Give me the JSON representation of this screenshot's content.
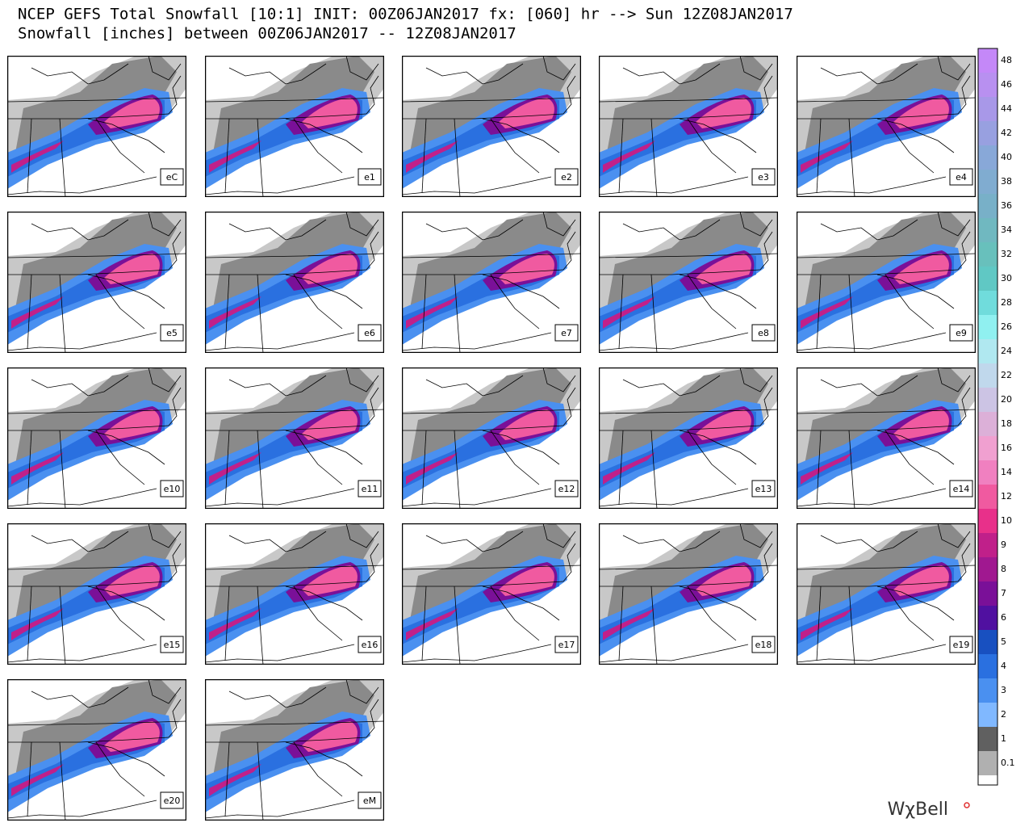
{
  "header": {
    "line1": "NCEP GEFS Total Snowfall [10:1] INIT: 00Z06JAN2017 fx: [060] hr --> Sun 12Z08JAN2017",
    "line2": "Snowfall [inches] between 00Z06JAN2017 -- 12Z08JAN2017"
  },
  "panels": [
    {
      "label": "eC"
    },
    {
      "label": "e1"
    },
    {
      "label": "e2"
    },
    {
      "label": "e3"
    },
    {
      "label": "e4"
    },
    {
      "label": "e5"
    },
    {
      "label": "e6"
    },
    {
      "label": "e7"
    },
    {
      "label": "e8"
    },
    {
      "label": "e9"
    },
    {
      "label": "e10"
    },
    {
      "label": "e11"
    },
    {
      "label": "e12"
    },
    {
      "label": "e13"
    },
    {
      "label": "e14"
    },
    {
      "label": "e15"
    },
    {
      "label": "e16"
    },
    {
      "label": "e17"
    },
    {
      "label": "e18"
    },
    {
      "label": "e19"
    },
    {
      "label": "e20"
    },
    {
      "label": "eM"
    }
  ],
  "colorbar": {
    "labels": [
      "48",
      "46",
      "44",
      "42",
      "40",
      "38",
      "36",
      "34",
      "32",
      "30",
      "28",
      "26",
      "24",
      "22",
      "20",
      "18",
      "16",
      "14",
      "12",
      "10",
      "9",
      "8",
      "7",
      "6",
      "5",
      "4",
      "3",
      "2",
      "1",
      "0.1"
    ],
    "colors": [
      "#c488f8",
      "#b890f0",
      "#a898e8",
      "#98a0e0",
      "#88a8d8",
      "#80acd0",
      "#78b0c8",
      "#70b8c0",
      "#68c0bc",
      "#60c8c4",
      "#70dcdc",
      "#90f0f0",
      "#b0e8f0",
      "#c0d8ec",
      "#ccc4e4",
      "#dcb0d8",
      "#f0a0d0",
      "#f080c0",
      "#f05aa0",
      "#e8308a",
      "#c0208a",
      "#a01890",
      "#7a1098",
      "#5010a0",
      "#1850c0",
      "#2a70e0",
      "#4a90f0",
      "#80b8ff",
      "#606060",
      "#b0b0b0"
    ]
  },
  "watermark": "WχBell"
}
